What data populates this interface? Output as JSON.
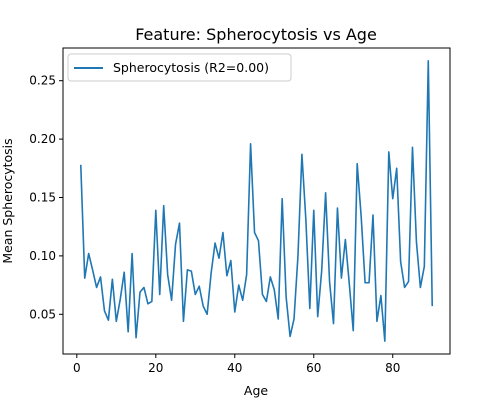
{
  "chart_data": {
    "type": "line",
    "title": "Feature: Spherocytosis vs Age",
    "xlabel": "Age",
    "ylabel": "Mean Spherocytosis",
    "xlim": [
      -3.5,
      94.5
    ],
    "ylim": [
      0.016,
      0.278
    ],
    "xticks": [
      0,
      20,
      40,
      60,
      80
    ],
    "xtick_labels": [
      "0",
      "20",
      "40",
      "60",
      "80"
    ],
    "yticks": [
      0.05,
      0.1,
      0.15,
      0.2,
      0.25
    ],
    "ytick_labels": [
      "0.05",
      "0.10",
      "0.15",
      "0.20",
      "0.25"
    ],
    "grid": false,
    "legend": {
      "position": "top-left"
    },
    "series": [
      {
        "name": "Spherocytosis (R2=0.00)",
        "color": "#1f77b4",
        "x": [
          1,
          2,
          3,
          4,
          5,
          6,
          7,
          8,
          9,
          10,
          11,
          12,
          13,
          14,
          15,
          16,
          17,
          18,
          19,
          20,
          21,
          22,
          23,
          24,
          25,
          26,
          27,
          28,
          29,
          30,
          31,
          32,
          33,
          34,
          35,
          36,
          37,
          38,
          39,
          40,
          41,
          42,
          43,
          44,
          45,
          46,
          47,
          48,
          49,
          50,
          51,
          52,
          53,
          54,
          55,
          56,
          57,
          58,
          59,
          60,
          61,
          62,
          63,
          64,
          65,
          66,
          67,
          68,
          69,
          70,
          71,
          72,
          73,
          74,
          75,
          76,
          77,
          78,
          79,
          80,
          81,
          82,
          83,
          84,
          85,
          86,
          87,
          88,
          89,
          90
        ],
        "y": [
          0.178,
          0.081,
          0.102,
          0.088,
          0.073,
          0.082,
          0.053,
          0.045,
          0.08,
          0.044,
          0.063,
          0.086,
          0.035,
          0.102,
          0.03,
          0.069,
          0.073,
          0.059,
          0.061,
          0.139,
          0.067,
          0.143,
          0.084,
          0.062,
          0.11,
          0.128,
          0.044,
          0.088,
          0.087,
          0.067,
          0.074,
          0.057,
          0.05,
          0.085,
          0.111,
          0.098,
          0.12,
          0.083,
          0.096,
          0.052,
          0.075,
          0.062,
          0.084,
          0.196,
          0.12,
          0.113,
          0.067,
          0.061,
          0.082,
          0.071,
          0.046,
          0.149,
          0.065,
          0.031,
          0.046,
          0.1,
          0.187,
          0.131,
          0.055,
          0.139,
          0.048,
          0.087,
          0.154,
          0.078,
          0.042,
          0.141,
          0.081,
          0.114,
          0.076,
          0.036,
          0.179,
          0.134,
          0.077,
          0.077,
          0.135,
          0.044,
          0.066,
          0.027,
          0.189,
          0.149,
          0.175,
          0.095,
          0.073,
          0.078,
          0.193,
          0.112,
          0.073,
          0.091,
          0.267,
          0.057
        ]
      }
    ]
  }
}
